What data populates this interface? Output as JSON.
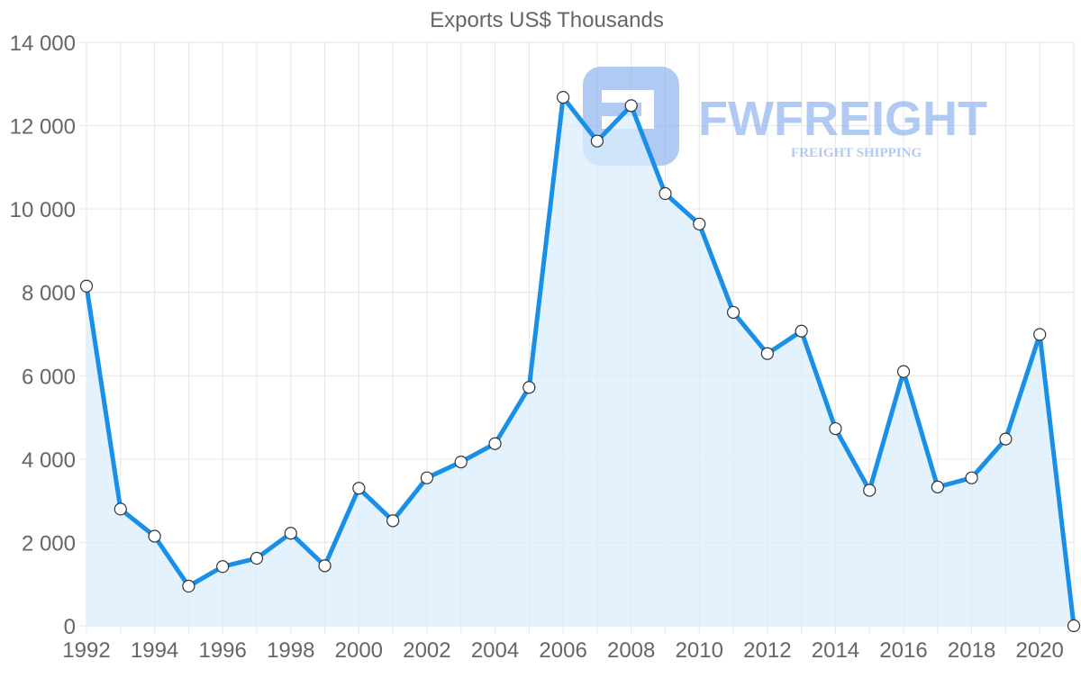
{
  "chart_data": {
    "type": "area",
    "title": "Exports US$ Thousands",
    "xlabel": "",
    "ylabel": "",
    "x": [
      1992,
      1993,
      1994,
      1995,
      1996,
      1997,
      1998,
      1999,
      2000,
      2001,
      2002,
      2003,
      2004,
      2005,
      2006,
      2007,
      2008,
      2009,
      2010,
      2011,
      2012,
      2013,
      2014,
      2015,
      2016,
      2017,
      2018,
      2019,
      2020,
      2021
    ],
    "series": [
      {
        "name": "Exports US$ Thousands",
        "values": [
          8150,
          2800,
          2150,
          950,
          1420,
          1620,
          2220,
          1440,
          3300,
          2520,
          3550,
          3930,
          4370,
          5720,
          12680,
          11630,
          12480,
          10370,
          9640,
          7520,
          6530,
          7070,
          4730,
          3250,
          6100,
          3330,
          3550,
          4480,
          6990,
          0
        ]
      }
    ],
    "ylim": [
      0,
      14000
    ],
    "yticks": [
      0,
      2000,
      4000,
      6000,
      8000,
      10000,
      12000,
      14000
    ],
    "ytick_labels": [
      "0",
      "2 000",
      "4 000",
      "6 000",
      "8 000",
      "10 000",
      "12 000",
      "14 000"
    ],
    "xticks": [
      1992,
      1994,
      1996,
      1998,
      2000,
      2002,
      2004,
      2006,
      2008,
      2010,
      2012,
      2014,
      2016,
      2018,
      2020
    ],
    "xtick_labels": [
      "1992",
      "1994",
      "1996",
      "1998",
      "2000",
      "2002",
      "2004",
      "2006",
      "2008",
      "2010",
      "2012",
      "2014",
      "2016",
      "2018",
      "2020"
    ],
    "grid": true,
    "colors": {
      "line": "#1a8fe8",
      "fill": "#daedfb",
      "point_fill": "#ffffff",
      "point_stroke": "#333333",
      "grid": "#e6e6e6",
      "text": "#666666"
    }
  },
  "watermark": {
    "brand": "FWFREIGHT",
    "tagline": "FREIGHT SHIPPING",
    "color": "#8fb4ee"
  }
}
